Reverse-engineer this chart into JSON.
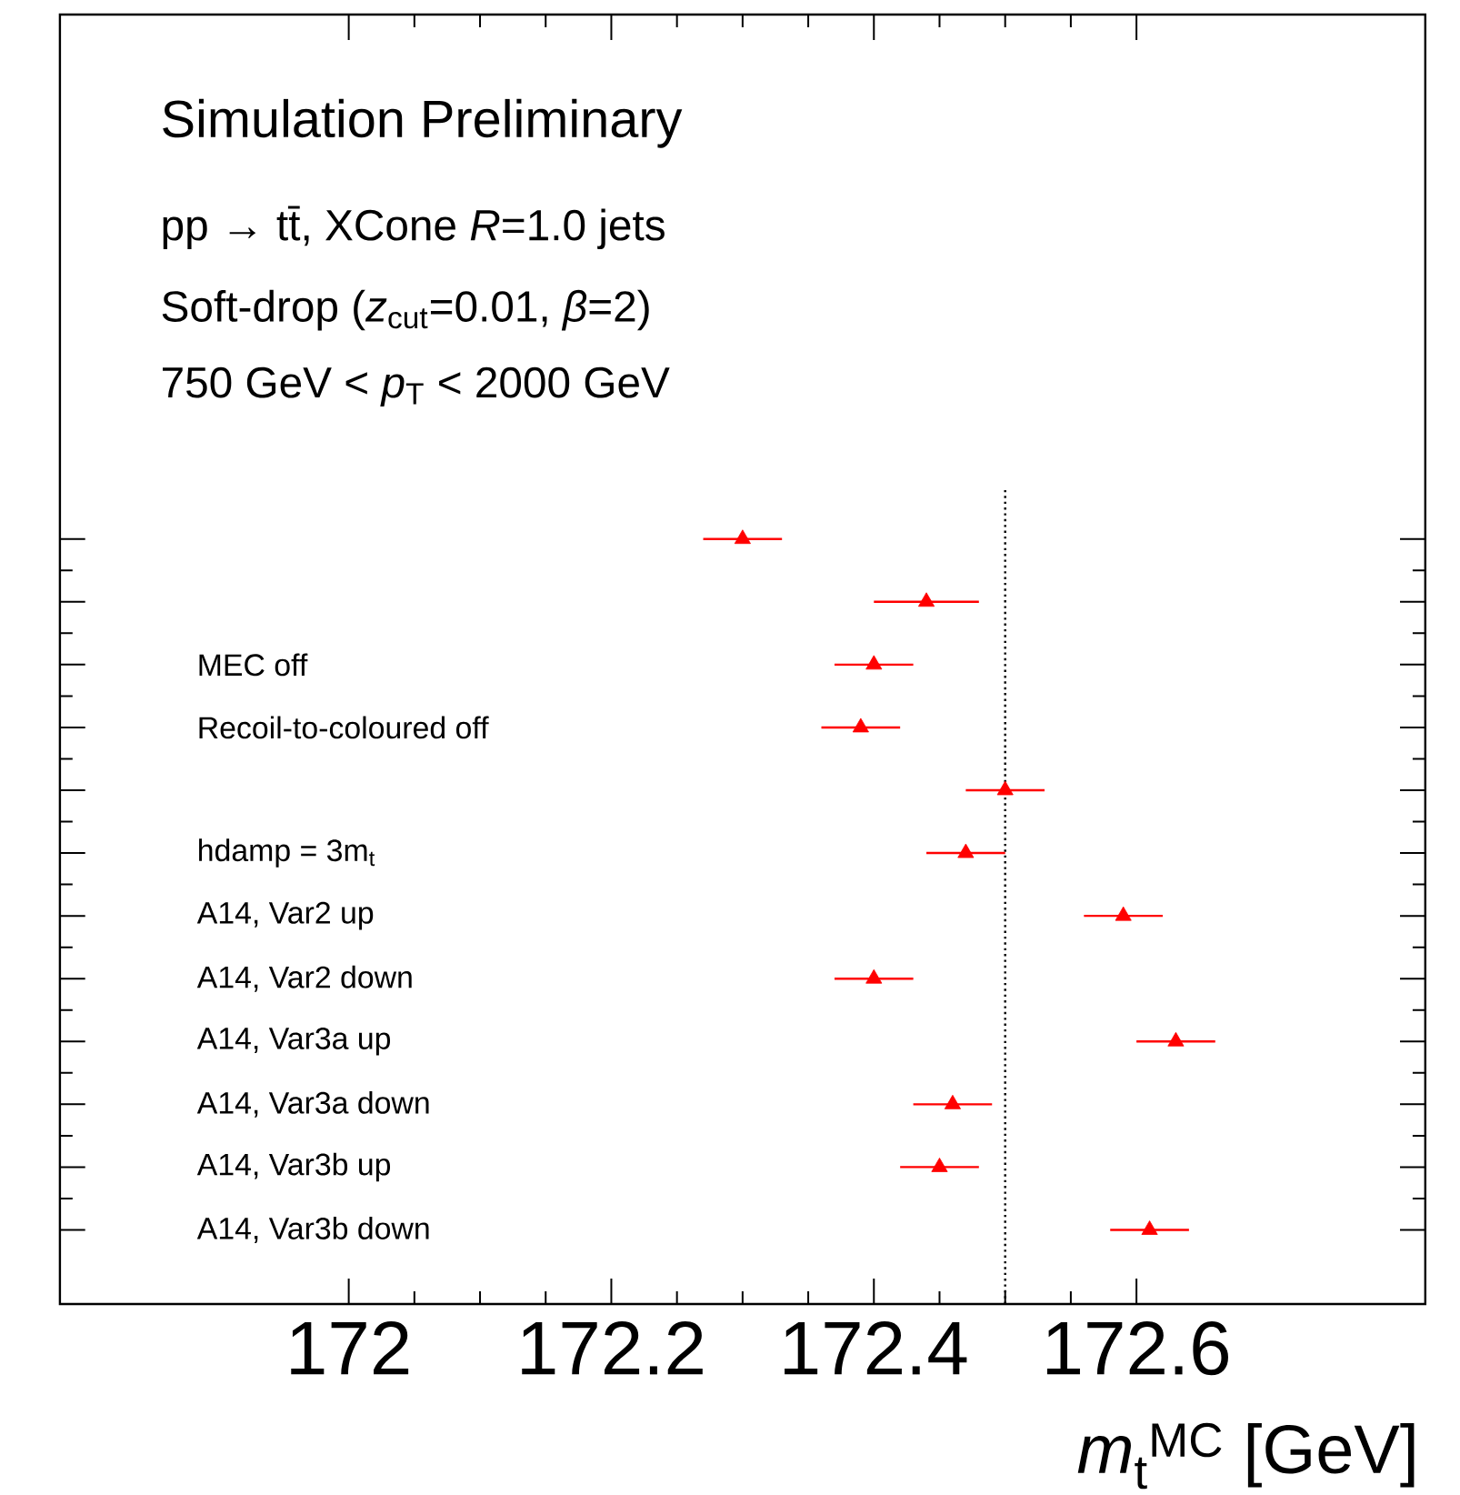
{
  "chart_data": {
    "type": "scatter",
    "orientation": "horizontal",
    "title": "Simulation Preliminary",
    "annotations": [
      "pp → tt̄, XCone *R*=1.0 jets",
      "Soft-drop (*z*$_{cut}$=0.01, *β*=2)",
      "750 GeV < *p*$_{T}$ < 2000 GeV"
    ],
    "xlabel": "*m*$_{t}$$^{MC}$ [GeV]",
    "categories": [
      null,
      null,
      "MEC off",
      "Recoil-to-coloured off",
      null,
      "hdamp = 3m$_{t}$",
      "A14, Var2 up",
      "A14, Var2 down",
      "A14, Var3a up",
      "A14, Var3a down",
      "A14, Var3b up",
      "A14, Var3b down"
    ],
    "values": [
      172.3,
      172.44,
      172.4,
      172.39,
      172.5,
      172.47,
      172.59,
      172.4,
      172.63,
      172.46,
      172.45,
      172.61
    ],
    "errors": [
      0.03,
      0.04,
      0.03,
      0.03,
      0.03,
      0.03,
      0.03,
      0.03,
      0.03,
      0.03,
      0.03,
      0.03
    ],
    "color": "#ff0000",
    "marker": "triangle",
    "xlim": [
      171.78,
      172.82
    ],
    "xticks": [
      172,
      172.2,
      172.4,
      172.6
    ],
    "ref_lines": [
      {
        "axis": "x",
        "value": 172.5,
        "line_style": "dotted",
        "color": "#000000"
      }
    ]
  }
}
